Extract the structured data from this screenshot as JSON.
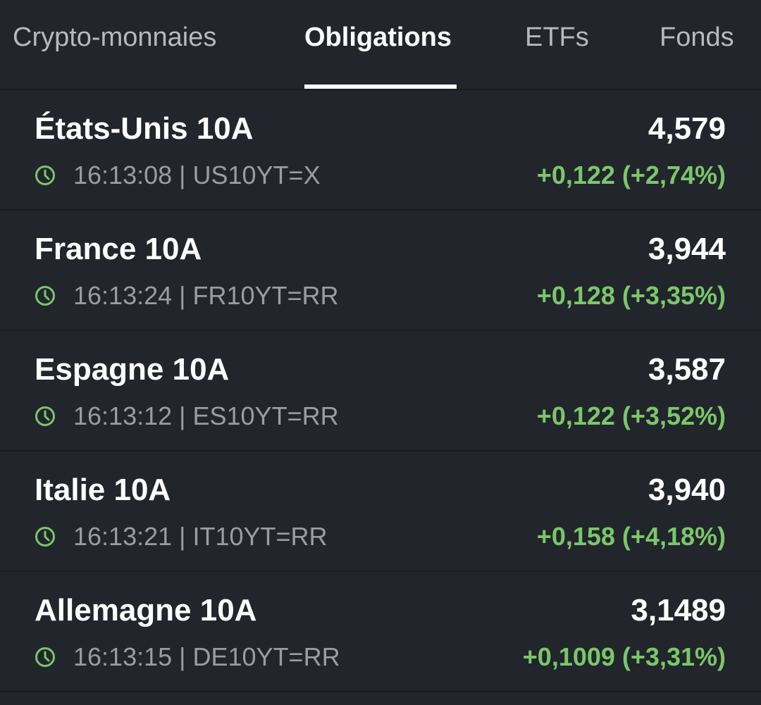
{
  "tabs": [
    {
      "label": "Crypto-monnaies",
      "active": false
    },
    {
      "label": "Obligations",
      "active": true
    },
    {
      "label": "ETFs",
      "active": false
    },
    {
      "label": "Fonds",
      "active": false
    }
  ],
  "colors": {
    "background": "#22252b",
    "divider": "#1a1c21",
    "positive": "#7ac76a",
    "muted_text": "#9a9da3",
    "inactive_tab": "#b6b9be"
  },
  "bonds": [
    {
      "name": "États-Unis 10A",
      "price": "4,579",
      "meta": "16:13:08 | US10YT=X",
      "change": "+0,122 (+2,74%)",
      "icon": "clock-icon"
    },
    {
      "name": "France 10A",
      "price": "3,944",
      "meta": "16:13:24 | FR10YT=RR",
      "change": "+0,128 (+3,35%)",
      "icon": "clock-icon"
    },
    {
      "name": "Espagne 10A",
      "price": "3,587",
      "meta": "16:13:12 | ES10YT=RR",
      "change": "+0,122 (+3,52%)",
      "icon": "clock-icon"
    },
    {
      "name": "Italie 10A",
      "price": "3,940",
      "meta": "16:13:21 | IT10YT=RR",
      "change": "+0,158 (+4,18%)",
      "icon": "clock-icon"
    },
    {
      "name": "Allemagne 10A",
      "price": "3,1489",
      "meta": "16:13:15 | DE10YT=RR",
      "change": "+0,1009 (+3,31%)",
      "icon": "clock-icon"
    }
  ]
}
